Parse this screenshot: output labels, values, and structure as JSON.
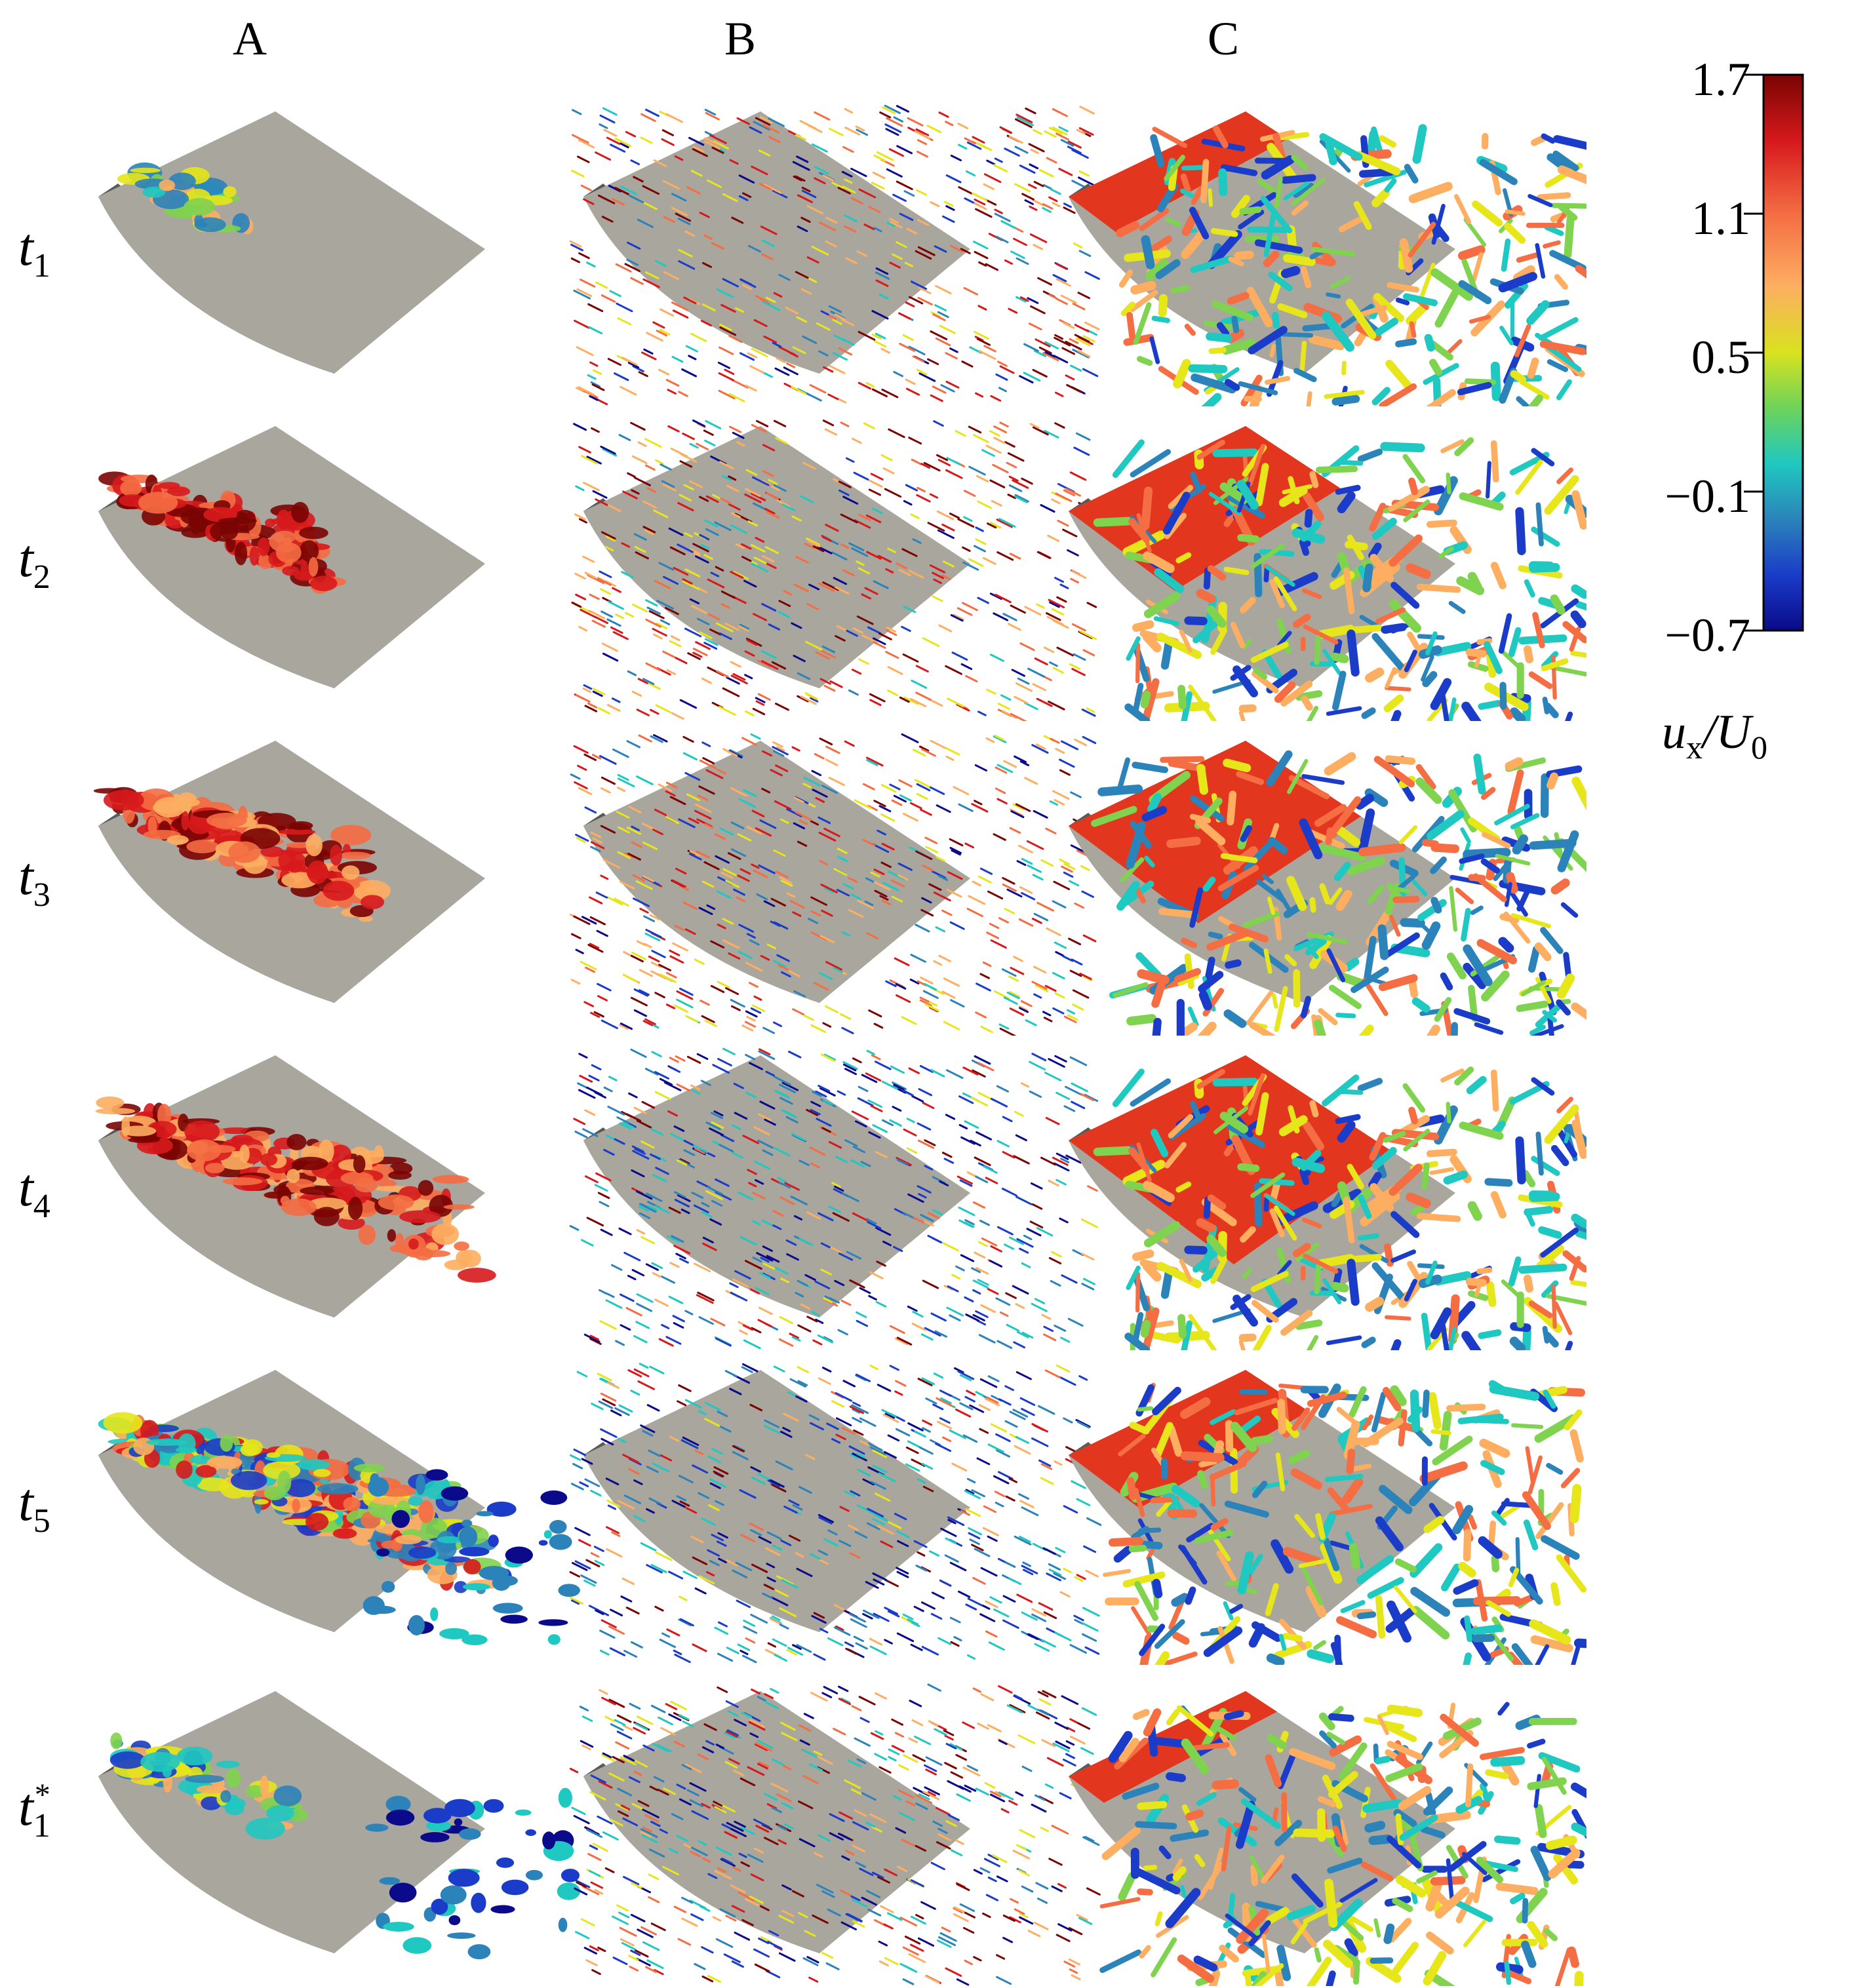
{
  "columns": [
    {
      "id": "A",
      "label": "A"
    },
    {
      "id": "B",
      "label": "B"
    },
    {
      "id": "C",
      "label": "C"
    }
  ],
  "rows": [
    {
      "id": "t1",
      "symbol": "t",
      "sub": "1",
      "sup": ""
    },
    {
      "id": "t2",
      "symbol": "t",
      "sub": "2",
      "sup": ""
    },
    {
      "id": "t3",
      "symbol": "t",
      "sub": "3",
      "sup": ""
    },
    {
      "id": "t4",
      "symbol": "t",
      "sub": "4",
      "sup": ""
    },
    {
      "id": "t5",
      "symbol": "t",
      "sub": "5",
      "sup": ""
    },
    {
      "id": "t1star",
      "symbol": "t",
      "sub": "1",
      "sup": "*"
    }
  ],
  "colorbar": {
    "ticks": [
      "1.7",
      "1.1",
      "0.5",
      "−0.1",
      "−0.7"
    ],
    "label_main": "u",
    "label_sub": "x",
    "label_rest": "/U",
    "label_sub2": "0",
    "colors": [
      "#7a0403",
      "#d7191c",
      "#f46d43",
      "#fdae61",
      "#e6e61a",
      "#7fd34e",
      "#1fc8c0",
      "#2b83ba",
      "#1a3cc8",
      "#0a0a8a"
    ]
  },
  "surface_colors": {
    "airfoil_top": "#a9a69e",
    "airfoil_side": "#5a5a5a"
  }
}
